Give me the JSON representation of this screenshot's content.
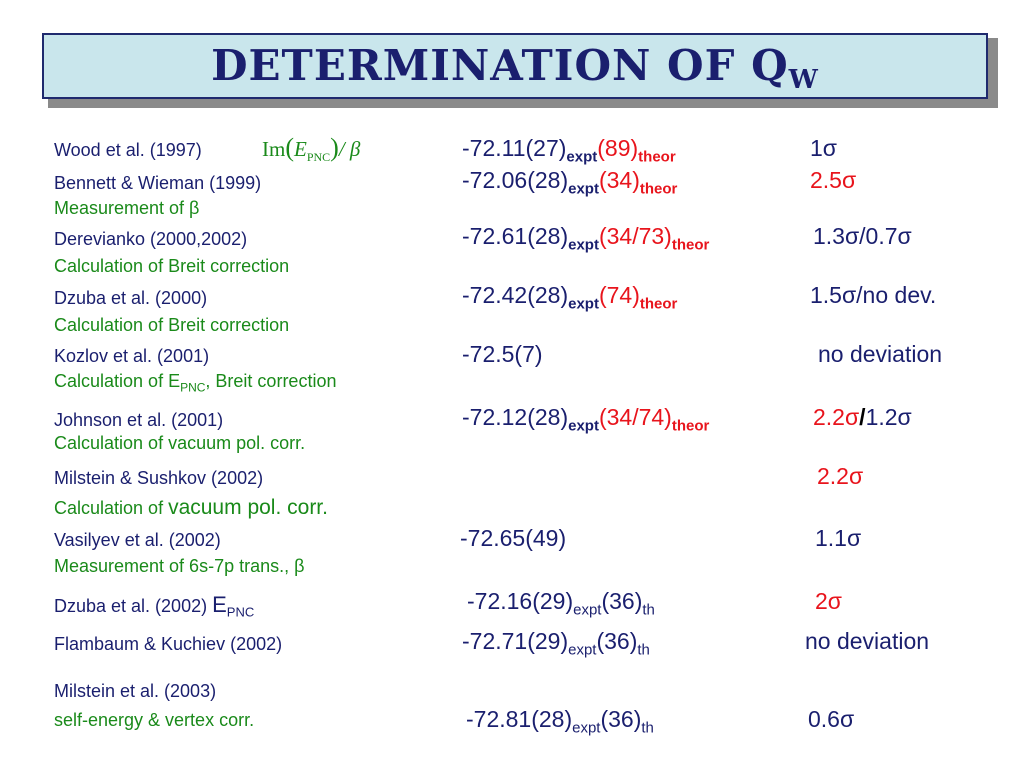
{
  "title": {
    "main": "Determination of Q",
    "sub": "W"
  },
  "rows": [
    {
      "ref": "Wood et al. (1997)",
      "formula": {
        "im": "Im",
        "e": "E",
        "pnc": "PNC",
        "beta": "/ β"
      },
      "val": {
        "num": "-72.11(27)",
        "expt": "expt",
        "theor_val": "(89)",
        "theor": "theor"
      },
      "dev": "1σ"
    },
    {
      "ref": "Bennett & Wieman (1999)",
      "note": "Measurement of β",
      "val": {
        "num": "-72.06(28)",
        "expt": "expt",
        "theor_val": "(34)",
        "theor": "theor"
      },
      "dev": "2.5σ"
    },
    {
      "ref": "Derevianko (2000,2002)",
      "note": "Calculation of Breit correction",
      "val": {
        "num": "-72.61(28)",
        "expt": "expt",
        "theor_val": "(34/73)",
        "theor": "theor"
      },
      "dev": "1.3σ/0.7σ"
    },
    {
      "ref": "Dzuba et al. (2000)",
      "note": "Calculation of Breit correction",
      "val": {
        "num": "-72.42(28)",
        "expt": "expt",
        "theor_val": "(74)",
        "theor": "theor"
      },
      "dev": "1.5σ/no dev."
    },
    {
      "ref": "Kozlov et al. (2001)",
      "note": {
        "pre": "Calculation of E",
        "sub": "PNC",
        "post": ", Breit correction"
      },
      "val": {
        "num": "-72.5(7)"
      },
      "dev": "no deviation"
    },
    {
      "ref": "Johnson et al. (2001)",
      "note": "Calculation of vacuum pol. corr.",
      "val": {
        "num": "-72.12(28)",
        "expt": "expt",
        "theor_val": "(34/74)",
        "theor": "theor"
      },
      "dev": {
        "a": "2.2σ",
        "sep": "/",
        "b": "1.2σ"
      }
    },
    {
      "ref": "Milstein & Sushkov (2002)",
      "note": {
        "pre": "Calculation of ",
        "big": "vacuum pol. corr."
      },
      "dev": "2.2σ"
    },
    {
      "ref": "Vasilyev et al. (2002)",
      "note": "Measurement of 6s-7p trans., β",
      "val": {
        "num": "-72.65(49)"
      },
      "dev": "1.1σ"
    },
    {
      "ref": {
        "pre": "Dzuba et al. (2002) ",
        "e": "E",
        "sub": "PNC"
      },
      "val": {
        "num": "-72.16(29)",
        "expt": "expt",
        "th_val": "(36)",
        "th": "th"
      },
      "dev": "2σ"
    },
    {
      "ref": "Flambaum & Kuchiev (2002)",
      "val": {
        "num": "-72.71(29)",
        "expt": "expt",
        "th_val": "(36)",
        "th": "th"
      },
      "dev": "no deviation"
    },
    {
      "ref": "Milstein et al. (2003)",
      "note": "self-energy & vertex corr.",
      "val": {
        "num": "-72.81(28)",
        "expt": "expt",
        "th_val": "(36)",
        "th": "th"
      },
      "dev": "0.6σ"
    }
  ],
  "colors": {
    "navy": "#1a1f6e",
    "green": "#1a8a1a",
    "red": "#e8141c",
    "title_bg": "#c9e6ec"
  }
}
